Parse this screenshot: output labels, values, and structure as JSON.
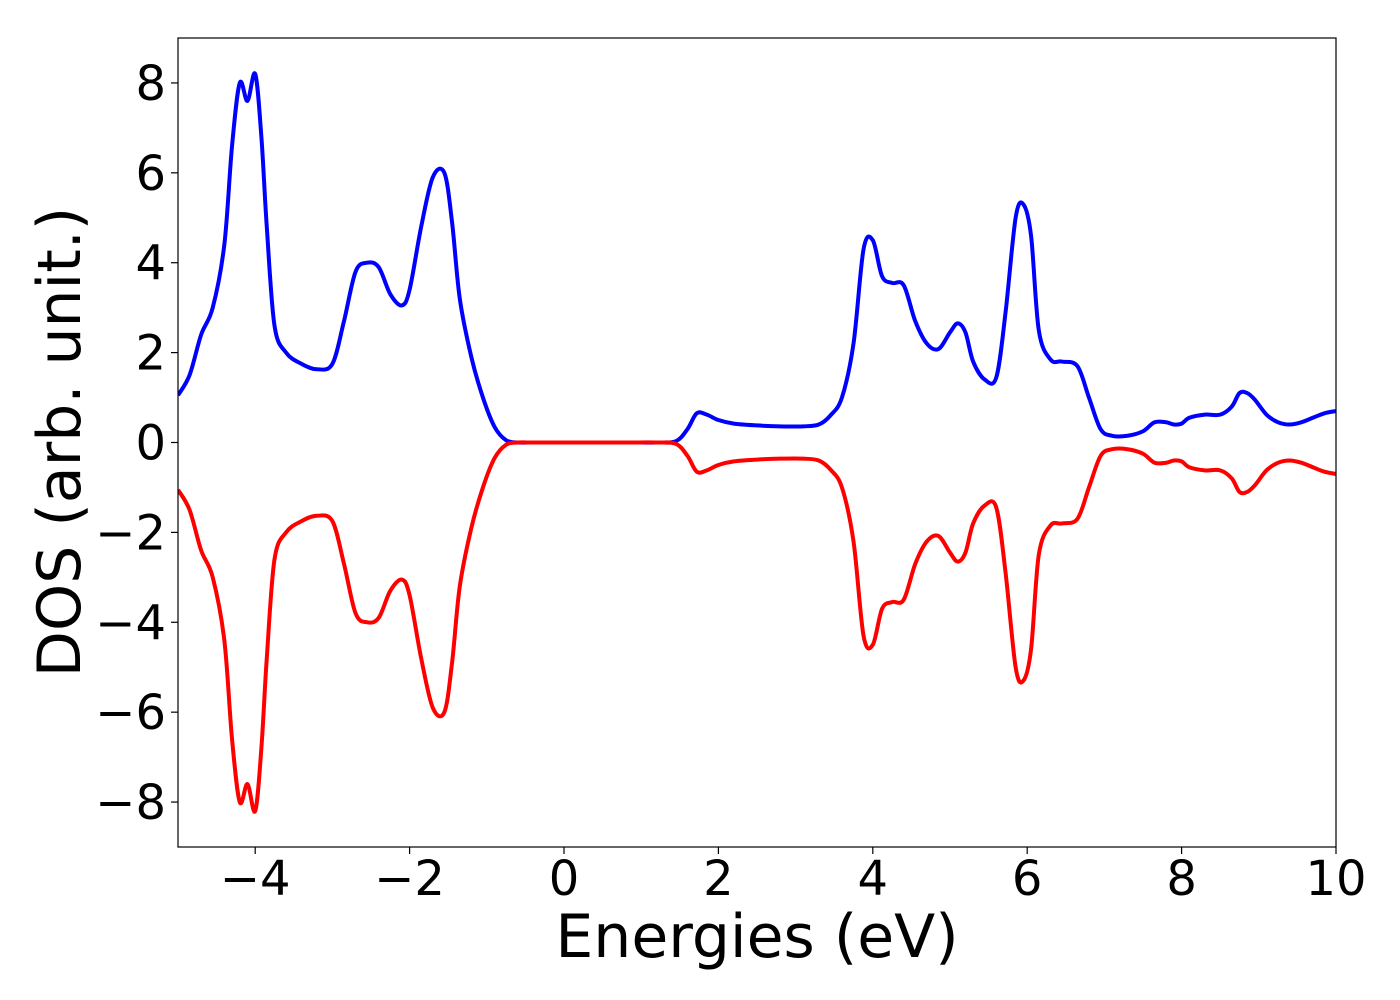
{
  "chart_data": {
    "type": "line",
    "title": "",
    "xlabel": "Energies (eV)",
    "ylabel": "DOS (arb. unit.)",
    "xlim": [
      -5,
      10
    ],
    "ylim": [
      -9,
      9
    ],
    "grid": false,
    "legend": "none",
    "xticks": [
      -4,
      -2,
      0,
      2,
      4,
      6,
      8,
      10
    ],
    "yticks": [
      -8,
      -6,
      -4,
      -2,
      0,
      2,
      4,
      6,
      8
    ],
    "xtick_labels": [
      "−4",
      "−2",
      "0",
      "2",
      "4",
      "6",
      "8",
      "10"
    ],
    "ytick_labels": [
      "−8",
      "−6",
      "−4",
      "−2",
      "0",
      "2",
      "4",
      "6",
      "8"
    ],
    "series": [
      {
        "color": "#0000ff",
        "x": [
          -5.0,
          -4.85,
          -4.7,
          -4.55,
          -4.4,
          -4.3,
          -4.2,
          -4.1,
          -4.0,
          -3.92,
          -3.85,
          -3.75,
          -3.6,
          -3.4,
          -3.2,
          -3.0,
          -2.85,
          -2.7,
          -2.55,
          -2.4,
          -2.25,
          -2.1,
          -2.0,
          -1.85,
          -1.7,
          -1.55,
          -1.45,
          -1.35,
          -1.2,
          -1.05,
          -0.9,
          -0.75,
          -0.6,
          -0.45,
          -0.2,
          0.2,
          0.8,
          1.2,
          1.45,
          1.6,
          1.72,
          1.85,
          2.0,
          2.2,
          2.5,
          2.8,
          3.1,
          3.3,
          3.45,
          3.6,
          3.75,
          3.88,
          4.0,
          4.12,
          4.25,
          4.4,
          4.55,
          4.7,
          4.85,
          5.0,
          5.1,
          5.2,
          5.3,
          5.45,
          5.6,
          5.72,
          5.85,
          5.95,
          6.05,
          6.15,
          6.3,
          6.45,
          6.65,
          6.8,
          6.95,
          7.1,
          7.3,
          7.5,
          7.65,
          7.8,
          7.9,
          8.0,
          8.1,
          8.3,
          8.5,
          8.65,
          8.75,
          8.85,
          8.95,
          9.1,
          9.25,
          9.4,
          9.55,
          9.7,
          9.85,
          10.0
        ],
        "y": [
          1.05,
          1.5,
          2.4,
          3.0,
          4.4,
          6.6,
          8.0,
          7.6,
          8.2,
          6.8,
          4.8,
          2.6,
          2.0,
          1.75,
          1.63,
          1.75,
          2.7,
          3.8,
          4.0,
          3.9,
          3.3,
          3.05,
          3.4,
          4.8,
          5.9,
          6.0,
          4.9,
          3.2,
          1.9,
          1.0,
          0.35,
          0.05,
          0.0,
          0.0,
          0.0,
          0.0,
          0.0,
          0.0,
          0.03,
          0.3,
          0.65,
          0.62,
          0.5,
          0.42,
          0.38,
          0.36,
          0.36,
          0.4,
          0.6,
          1.0,
          2.2,
          4.3,
          4.5,
          3.7,
          3.55,
          3.5,
          2.7,
          2.2,
          2.08,
          2.45,
          2.65,
          2.45,
          1.8,
          1.4,
          1.45,
          2.9,
          5.0,
          5.3,
          4.6,
          2.5,
          1.85,
          1.8,
          1.7,
          1.0,
          0.3,
          0.15,
          0.15,
          0.25,
          0.45,
          0.45,
          0.4,
          0.42,
          0.55,
          0.62,
          0.62,
          0.8,
          1.1,
          1.1,
          0.95,
          0.62,
          0.45,
          0.4,
          0.45,
          0.55,
          0.65,
          0.7
        ]
      },
      {
        "color": "#ff0000",
        "x": [
          -5.0,
          -4.85,
          -4.7,
          -4.55,
          -4.4,
          -4.3,
          -4.2,
          -4.1,
          -4.0,
          -3.92,
          -3.85,
          -3.75,
          -3.6,
          -3.4,
          -3.2,
          -3.0,
          -2.85,
          -2.7,
          -2.55,
          -2.4,
          -2.25,
          -2.1,
          -2.0,
          -1.85,
          -1.7,
          -1.55,
          -1.45,
          -1.35,
          -1.2,
          -1.05,
          -0.9,
          -0.75,
          -0.6,
          -0.45,
          -0.2,
          0.2,
          0.8,
          1.2,
          1.45,
          1.6,
          1.72,
          1.85,
          2.0,
          2.2,
          2.5,
          2.8,
          3.1,
          3.3,
          3.45,
          3.6,
          3.75,
          3.88,
          4.0,
          4.12,
          4.25,
          4.4,
          4.55,
          4.7,
          4.85,
          5.0,
          5.1,
          5.2,
          5.3,
          5.45,
          5.6,
          5.72,
          5.85,
          5.95,
          6.05,
          6.15,
          6.3,
          6.45,
          6.65,
          6.8,
          6.95,
          7.1,
          7.3,
          7.5,
          7.65,
          7.8,
          7.9,
          8.0,
          8.1,
          8.3,
          8.5,
          8.65,
          8.75,
          8.85,
          8.95,
          9.1,
          9.25,
          9.4,
          9.55,
          9.7,
          9.85,
          10.0
        ],
        "y": [
          -1.05,
          -1.5,
          -2.4,
          -3.0,
          -4.4,
          -6.6,
          -8.0,
          -7.6,
          -8.2,
          -6.8,
          -4.8,
          -2.6,
          -2.0,
          -1.75,
          -1.63,
          -1.75,
          -2.7,
          -3.8,
          -4.0,
          -3.9,
          -3.3,
          -3.05,
          -3.4,
          -4.8,
          -5.9,
          -6.0,
          -4.9,
          -3.2,
          -1.9,
          -1.0,
          -0.35,
          -0.05,
          0.0,
          0.0,
          0.0,
          0.0,
          0.0,
          0.0,
          -0.03,
          -0.3,
          -0.65,
          -0.62,
          -0.5,
          -0.42,
          -0.38,
          -0.36,
          -0.36,
          -0.4,
          -0.6,
          -1.0,
          -2.2,
          -4.3,
          -4.5,
          -3.7,
          -3.55,
          -3.5,
          -2.7,
          -2.2,
          -2.08,
          -2.45,
          -2.65,
          -2.45,
          -1.8,
          -1.4,
          -1.45,
          -2.9,
          -5.0,
          -5.3,
          -4.6,
          -2.5,
          -1.85,
          -1.8,
          -1.7,
          -1.0,
          -0.3,
          -0.15,
          -0.15,
          -0.25,
          -0.45,
          -0.45,
          -0.4,
          -0.42,
          -0.55,
          -0.62,
          -0.62,
          -0.8,
          -1.1,
          -1.1,
          -0.95,
          -0.62,
          -0.45,
          -0.4,
          -0.45,
          -0.55,
          -0.65,
          -0.7
        ]
      }
    ]
  }
}
